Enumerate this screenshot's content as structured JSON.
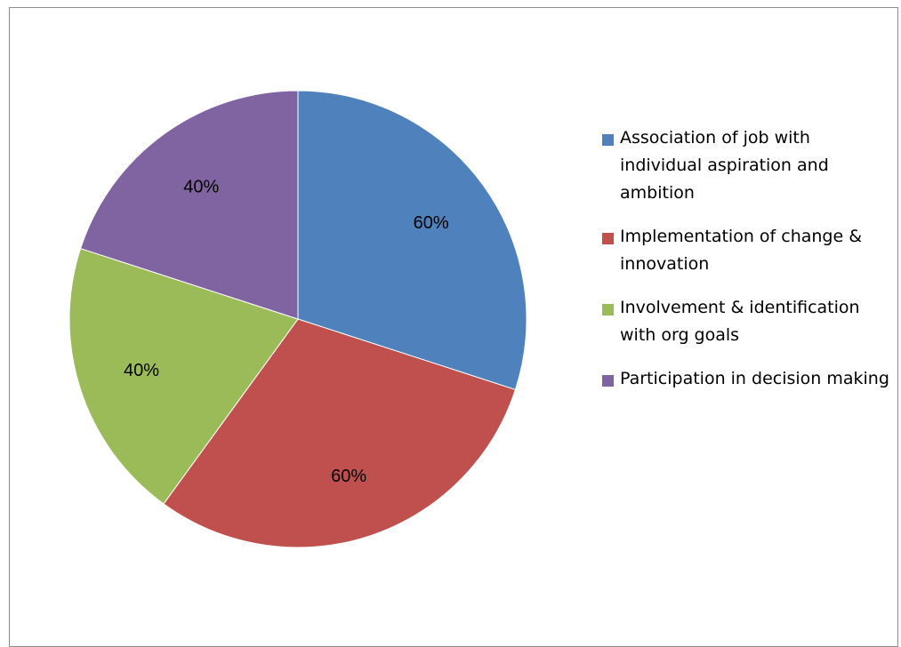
{
  "chart_data": {
    "type": "pie",
    "slices": [
      {
        "name": "Association of job with individual aspiration and ambition",
        "value": 60,
        "label": "60%",
        "color": "#4F81BD"
      },
      {
        "name": "Implementation of change & innovation",
        "value": 60,
        "label": "60%",
        "color": "#C0504D"
      },
      {
        "name": "Involvement & identification with org goals",
        "value": 40,
        "label": "40%",
        "color": "#9BBB59"
      },
      {
        "name": "Participation in decision making",
        "value": 40,
        "label": "40%",
        "color": "#8064A2"
      }
    ],
    "start": "12 o'clock",
    "direction": "clockwise",
    "legend_position": "right"
  }
}
